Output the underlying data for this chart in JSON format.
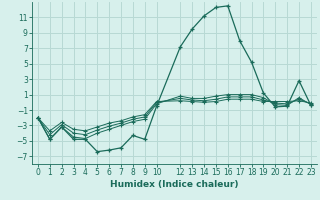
{
  "xlabel": "Humidex (Indice chaleur)",
  "background_color": "#d7f0ec",
  "grid_color": "#b8d9d4",
  "line_color": "#1a6b5a",
  "x_values": [
    0,
    1,
    2,
    3,
    4,
    5,
    6,
    7,
    8,
    9,
    10,
    12,
    13,
    14,
    15,
    16,
    17,
    18,
    19,
    20,
    21,
    22,
    23
  ],
  "series": [
    [
      -2.0,
      -4.8,
      -3.2,
      -4.8,
      -4.8,
      -6.4,
      -6.2,
      -5.9,
      -4.3,
      -4.8,
      -0.5,
      7.2,
      9.5,
      11.2,
      12.3,
      12.5,
      8.0,
      5.2,
      1.2,
      -0.6,
      -0.5,
      2.8,
      -0.4
    ],
    [
      -2.0,
      -4.8,
      -3.2,
      -4.5,
      -4.7,
      -4.0,
      -3.5,
      -3.0,
      -2.5,
      -2.2,
      -0.2,
      0.8,
      0.5,
      0.5,
      0.8,
      1.0,
      1.0,
      1.0,
      0.6,
      -0.3,
      -0.4,
      0.6,
      -0.3
    ],
    [
      -2.0,
      -4.2,
      -2.9,
      -4.0,
      -4.2,
      -3.6,
      -3.1,
      -2.7,
      -2.2,
      -1.9,
      0.0,
      0.5,
      0.3,
      0.2,
      0.4,
      0.7,
      0.7,
      0.7,
      0.3,
      -0.1,
      -0.2,
      0.4,
      -0.2
    ],
    [
      -2.0,
      -3.7,
      -2.6,
      -3.5,
      -3.7,
      -3.2,
      -2.7,
      -2.4,
      -1.9,
      -1.6,
      0.1,
      0.2,
      0.1,
      0.0,
      0.1,
      0.4,
      0.4,
      0.4,
      0.1,
      0.1,
      0.1,
      0.2,
      -0.1
    ]
  ],
  "ylim": [
    -8,
    13
  ],
  "yticks": [
    -7,
    -5,
    -3,
    -1,
    1,
    3,
    5,
    7,
    9,
    11
  ],
  "xticks": [
    0,
    1,
    2,
    3,
    4,
    5,
    6,
    7,
    8,
    9,
    10,
    12,
    13,
    14,
    15,
    16,
    17,
    18,
    19,
    20,
    21,
    22,
    23
  ],
  "tick_fontsize": 5.5,
  "xlabel_fontsize": 6.5
}
